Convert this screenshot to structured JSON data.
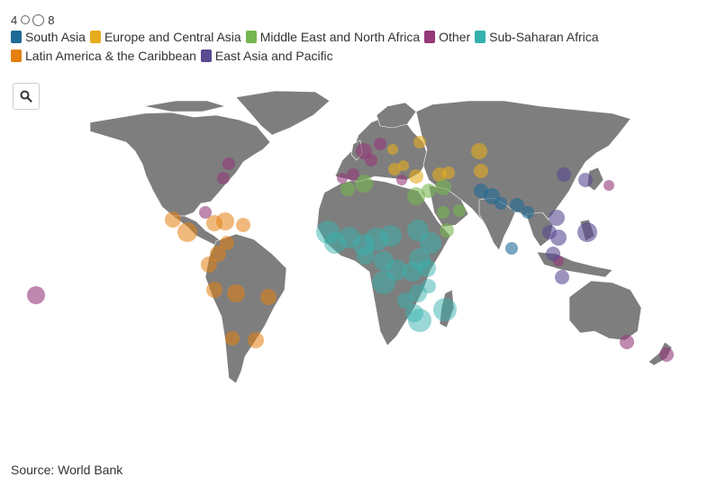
{
  "size_legend": {
    "min_label": "4",
    "max_label": "8"
  },
  "legend": [
    {
      "label": "South Asia",
      "color": "#1f6a96"
    },
    {
      "label": "Europe and Central Asia",
      "color": "#e6ac1c"
    },
    {
      "label": "Middle East and North Africa",
      "color": "#77b552"
    },
    {
      "label": "Other",
      "color": "#94397a"
    },
    {
      "label": "Sub-Saharan Africa",
      "color": "#35b1ad"
    },
    {
      "label": "Latin America & the Caribbean",
      "color": "#e4800f"
    },
    {
      "label": "East Asia and Pacific",
      "color": "#5a4a93"
    }
  ],
  "zoom_icon": "magnifier-icon",
  "source": "Source: World Bank",
  "map_colors": {
    "land": "#7e7e7e",
    "border": "#ffffff"
  }
}
